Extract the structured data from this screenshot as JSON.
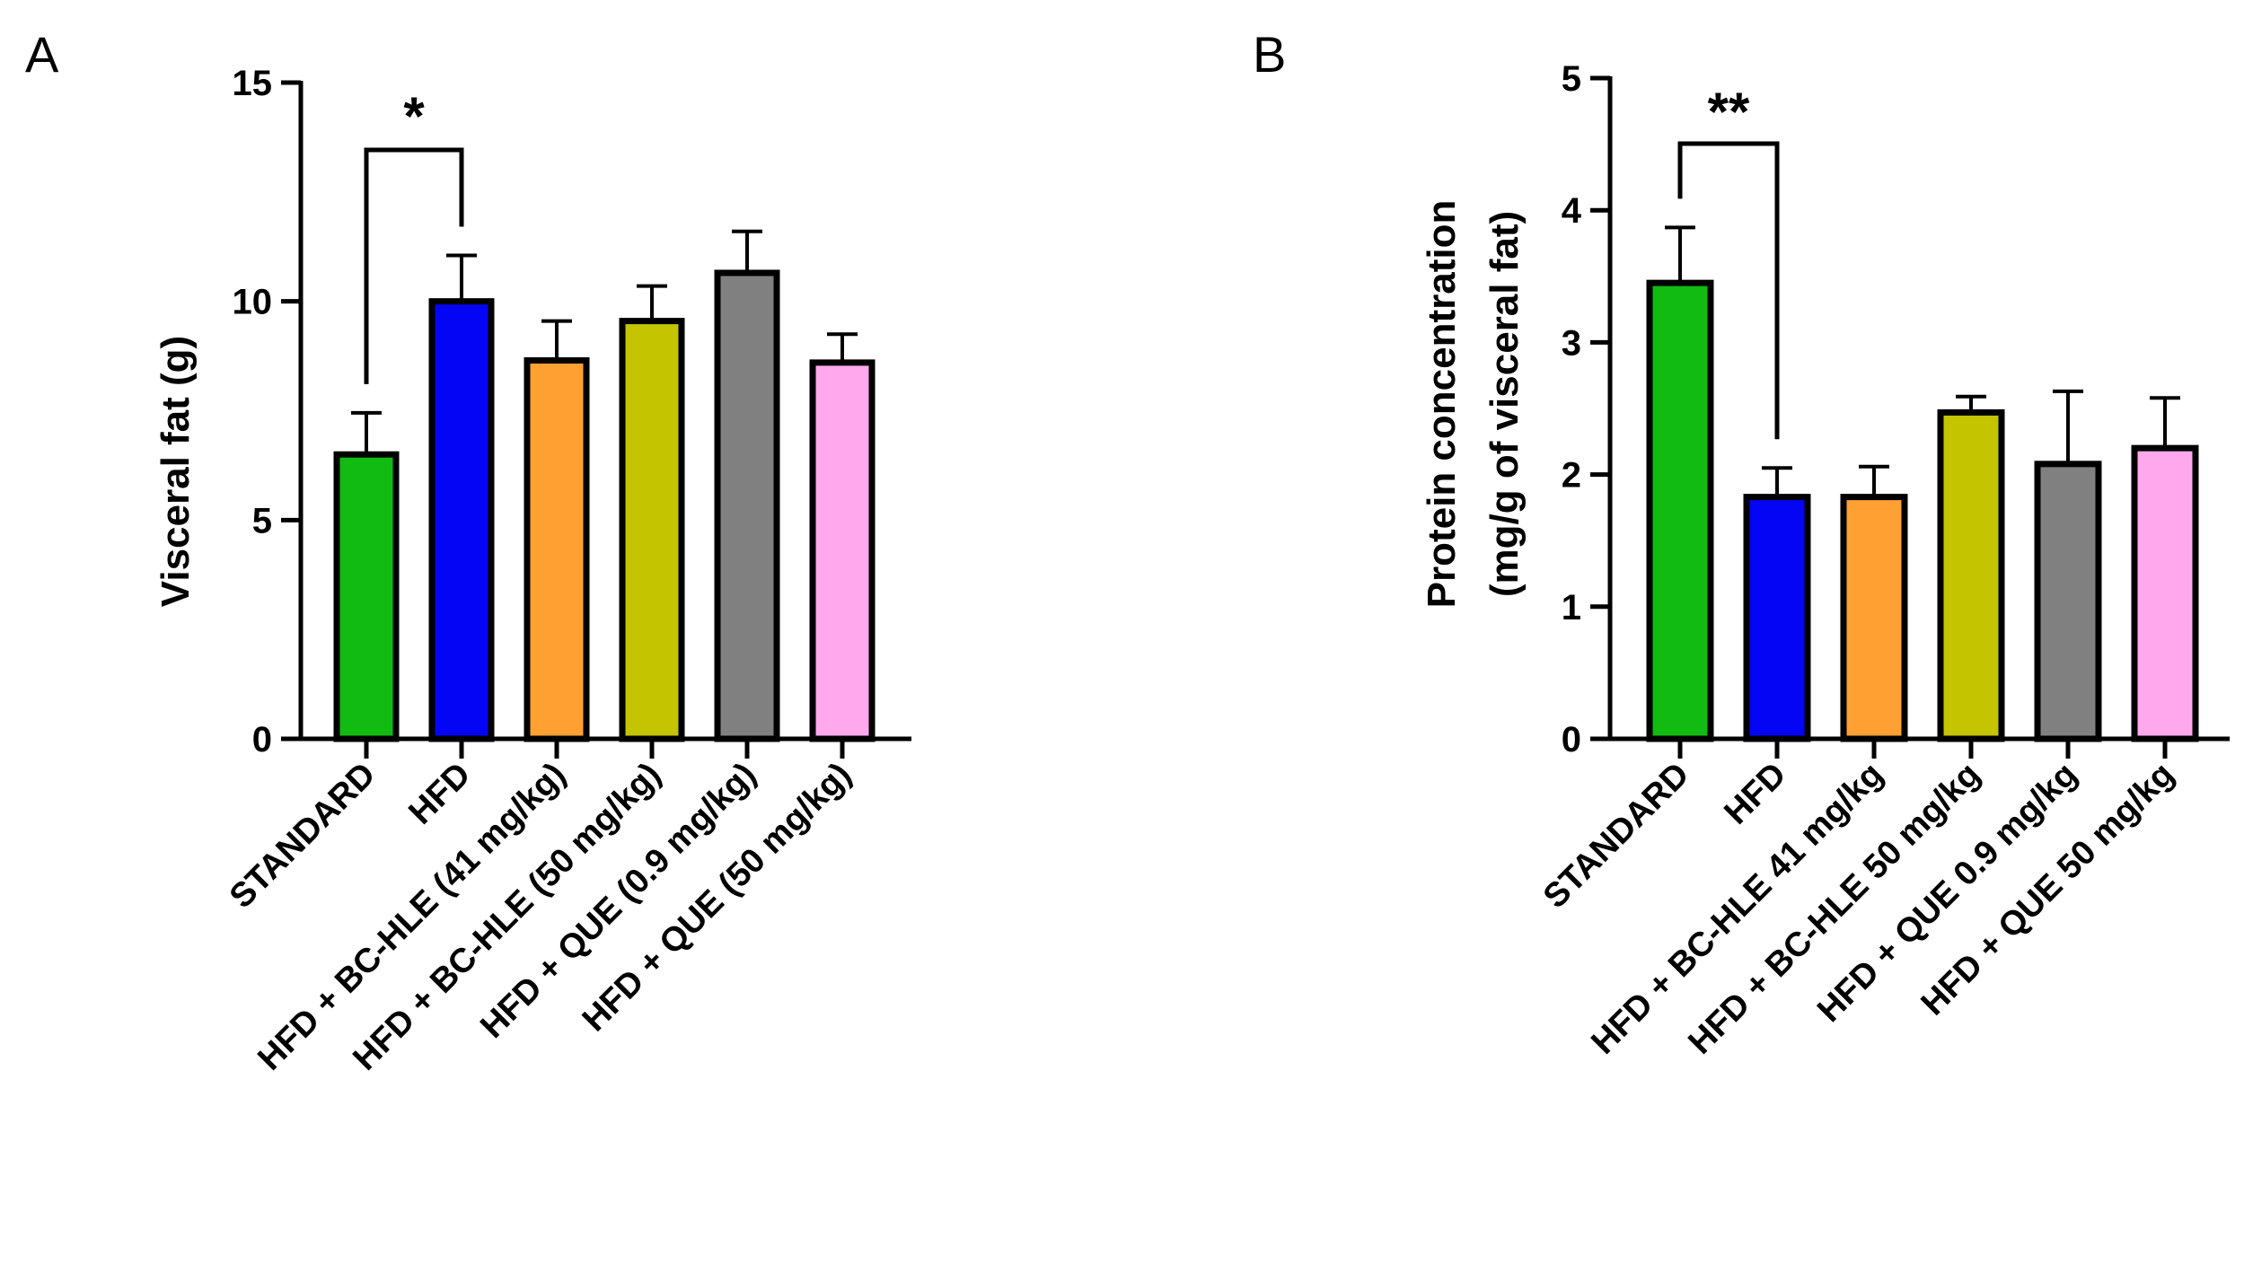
{
  "chart_data": [
    {
      "panel": "A",
      "type": "bar",
      "ylabel": "Visceral fat (g)",
      "ylim": [
        0,
        15
      ],
      "yticks": [
        0,
        5,
        10,
        15
      ],
      "categories": [
        "STANDARD",
        "HFD",
        "HFD + BC-HLE (41 mg/kg)",
        "HFD + BC-HLE (50 mg/kg)",
        "HFD + QUE (0.9 mg/kg)",
        "HFD + QUE (50 mg/kg)"
      ],
      "values": [
        6.5,
        10.0,
        8.65,
        9.55,
        10.65,
        8.6
      ],
      "errors": [
        0.95,
        1.05,
        0.9,
        0.8,
        0.95,
        0.65
      ],
      "colors": [
        "#11bb11",
        "#0505f5",
        "#ffa033",
        "#c4c400",
        "#808080",
        "#ffa8ee"
      ],
      "significance": [
        {
          "from": 0,
          "to": 1,
          "label": "*"
        }
      ],
      "grid": false
    },
    {
      "panel": "B",
      "type": "bar",
      "ylabel": [
        "Protein concentration",
        "(mg/g of visceral fat)"
      ],
      "ylim": [
        0,
        5
      ],
      "yticks": [
        0,
        1,
        2,
        3,
        4,
        5
      ],
      "categories": [
        "STANDARD",
        "HFD",
        "HFD + BC-HLE 41 mg/kg",
        "HFD + BC-HLE 50 mg/kg",
        "HFD + QUE 0.9 mg/kg",
        "HFD + QUE 50 mg/kg"
      ],
      "values": [
        3.45,
        1.83,
        1.83,
        2.47,
        2.08,
        2.2
      ],
      "errors": [
        0.42,
        0.22,
        0.23,
        0.12,
        0.55,
        0.38
      ],
      "colors": [
        "#11bb11",
        "#0505f5",
        "#ffa033",
        "#c4c400",
        "#808080",
        "#ffa8ee"
      ],
      "significance": [
        {
          "from": 0,
          "to": 1,
          "label": "**"
        }
      ],
      "grid": false
    }
  ]
}
